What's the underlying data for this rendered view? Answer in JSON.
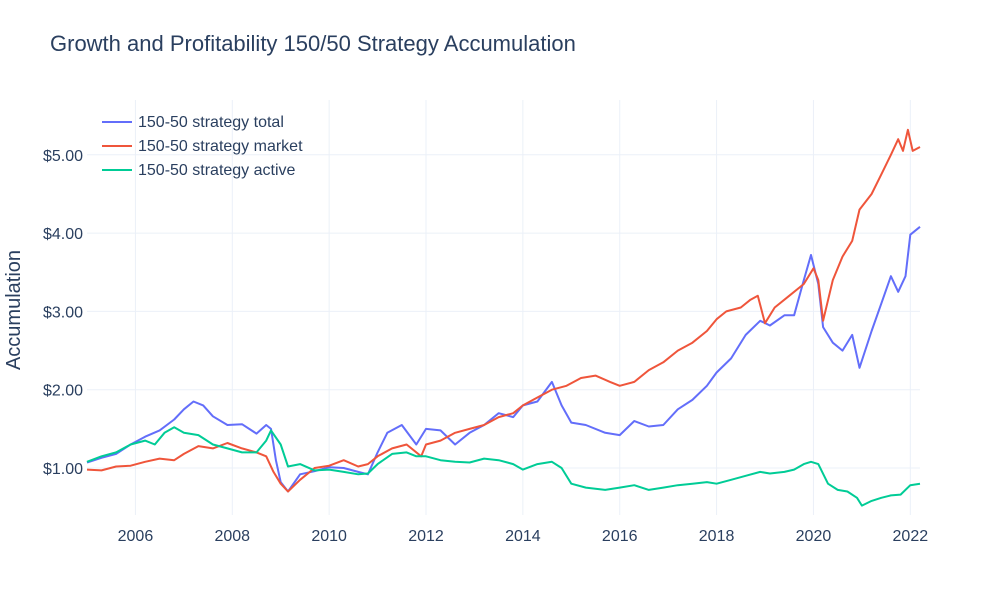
{
  "chart_data": {
    "type": "line",
    "title": "Growth and Profitability 150/50 Strategy Accumulation",
    "xlabel": "",
    "ylabel": "Accumulation",
    "xlim": [
      2005.0,
      2022.2
    ],
    "ylim": [
      0.4,
      5.7
    ],
    "xticks": [
      2006,
      2008,
      2010,
      2012,
      2014,
      2016,
      2018,
      2020,
      2022
    ],
    "xtick_labels": [
      "2006",
      "2008",
      "2010",
      "2012",
      "2014",
      "2016",
      "2018",
      "2020",
      "2022"
    ],
    "yticks": [
      1,
      2,
      3,
      4,
      5
    ],
    "ytick_labels": [
      "$1.00",
      "$2.00",
      "$3.00",
      "$4.00",
      "$5.00"
    ],
    "grid": true,
    "legend_position": "top-left",
    "series": [
      {
        "name": "150-50 strategy total",
        "color": "#636efa",
        "points": [
          [
            2005.0,
            1.07
          ],
          [
            2005.3,
            1.13
          ],
          [
            2005.6,
            1.18
          ],
          [
            2005.9,
            1.3
          ],
          [
            2006.2,
            1.4
          ],
          [
            2006.5,
            1.48
          ],
          [
            2006.8,
            1.62
          ],
          [
            2007.0,
            1.75
          ],
          [
            2007.2,
            1.85
          ],
          [
            2007.4,
            1.8
          ],
          [
            2007.6,
            1.66
          ],
          [
            2007.9,
            1.55
          ],
          [
            2008.2,
            1.56
          ],
          [
            2008.5,
            1.44
          ],
          [
            2008.7,
            1.55
          ],
          [
            2008.8,
            1.5
          ],
          [
            2008.9,
            1.1
          ],
          [
            2009.0,
            0.82
          ],
          [
            2009.15,
            0.7
          ],
          [
            2009.4,
            0.92
          ],
          [
            2009.7,
            0.96
          ],
          [
            2010.0,
            1.01
          ],
          [
            2010.3,
            1.0
          ],
          [
            2010.6,
            0.95
          ],
          [
            2010.8,
            0.92
          ],
          [
            2011.0,
            1.2
          ],
          [
            2011.2,
            1.45
          ],
          [
            2011.5,
            1.55
          ],
          [
            2011.8,
            1.3
          ],
          [
            2012.0,
            1.5
          ],
          [
            2012.3,
            1.48
          ],
          [
            2012.6,
            1.3
          ],
          [
            2012.9,
            1.45
          ],
          [
            2013.2,
            1.55
          ],
          [
            2013.5,
            1.7
          ],
          [
            2013.8,
            1.65
          ],
          [
            2014.0,
            1.8
          ],
          [
            2014.3,
            1.85
          ],
          [
            2014.6,
            2.1
          ],
          [
            2014.8,
            1.8
          ],
          [
            2015.0,
            1.58
          ],
          [
            2015.3,
            1.55
          ],
          [
            2015.7,
            1.45
          ],
          [
            2016.0,
            1.42
          ],
          [
            2016.3,
            1.6
          ],
          [
            2016.6,
            1.53
          ],
          [
            2016.9,
            1.55
          ],
          [
            2017.2,
            1.75
          ],
          [
            2017.5,
            1.87
          ],
          [
            2017.8,
            2.05
          ],
          [
            2018.0,
            2.22
          ],
          [
            2018.3,
            2.4
          ],
          [
            2018.6,
            2.7
          ],
          [
            2018.9,
            2.88
          ],
          [
            2019.1,
            2.82
          ],
          [
            2019.4,
            2.95
          ],
          [
            2019.6,
            2.95
          ],
          [
            2019.8,
            3.4
          ],
          [
            2019.95,
            3.72
          ],
          [
            2020.1,
            3.35
          ],
          [
            2020.2,
            2.8
          ],
          [
            2020.4,
            2.6
          ],
          [
            2020.6,
            2.5
          ],
          [
            2020.8,
            2.7
          ],
          [
            2020.95,
            2.28
          ],
          [
            2021.2,
            2.75
          ],
          [
            2021.4,
            3.1
          ],
          [
            2021.6,
            3.45
          ],
          [
            2021.75,
            3.25
          ],
          [
            2021.9,
            3.45
          ],
          [
            2022.0,
            3.98
          ],
          [
            2022.2,
            4.08
          ]
        ]
      },
      {
        "name": "150-50 strategy market",
        "color": "#ef553b",
        "points": [
          [
            2005.0,
            0.98
          ],
          [
            2005.3,
            0.97
          ],
          [
            2005.6,
            1.02
          ],
          [
            2005.9,
            1.03
          ],
          [
            2006.2,
            1.08
          ],
          [
            2006.5,
            1.12
          ],
          [
            2006.8,
            1.1
          ],
          [
            2007.0,
            1.18
          ],
          [
            2007.3,
            1.28
          ],
          [
            2007.6,
            1.25
          ],
          [
            2007.9,
            1.32
          ],
          [
            2008.2,
            1.25
          ],
          [
            2008.5,
            1.2
          ],
          [
            2008.7,
            1.15
          ],
          [
            2008.85,
            0.95
          ],
          [
            2009.0,
            0.8
          ],
          [
            2009.15,
            0.7
          ],
          [
            2009.4,
            0.85
          ],
          [
            2009.7,
            1.0
          ],
          [
            2010.0,
            1.03
          ],
          [
            2010.3,
            1.1
          ],
          [
            2010.6,
            1.02
          ],
          [
            2010.8,
            1.05
          ],
          [
            2011.0,
            1.15
          ],
          [
            2011.3,
            1.25
          ],
          [
            2011.6,
            1.3
          ],
          [
            2011.9,
            1.15
          ],
          [
            2012.0,
            1.3
          ],
          [
            2012.3,
            1.35
          ],
          [
            2012.6,
            1.45
          ],
          [
            2012.9,
            1.5
          ],
          [
            2013.2,
            1.55
          ],
          [
            2013.5,
            1.65
          ],
          [
            2013.8,
            1.7
          ],
          [
            2014.0,
            1.8
          ],
          [
            2014.3,
            1.9
          ],
          [
            2014.6,
            2.0
          ],
          [
            2014.9,
            2.05
          ],
          [
            2015.2,
            2.15
          ],
          [
            2015.5,
            2.18
          ],
          [
            2015.8,
            2.1
          ],
          [
            2016.0,
            2.05
          ],
          [
            2016.3,
            2.1
          ],
          [
            2016.6,
            2.25
          ],
          [
            2016.9,
            2.35
          ],
          [
            2017.2,
            2.5
          ],
          [
            2017.5,
            2.6
          ],
          [
            2017.8,
            2.75
          ],
          [
            2018.0,
            2.9
          ],
          [
            2018.2,
            3.0
          ],
          [
            2018.5,
            3.05
          ],
          [
            2018.7,
            3.15
          ],
          [
            2018.85,
            3.2
          ],
          [
            2019.0,
            2.85
          ],
          [
            2019.2,
            3.05
          ],
          [
            2019.5,
            3.2
          ],
          [
            2019.8,
            3.35
          ],
          [
            2020.0,
            3.55
          ],
          [
            2020.1,
            3.4
          ],
          [
            2020.2,
            2.88
          ],
          [
            2020.4,
            3.4
          ],
          [
            2020.6,
            3.7
          ],
          [
            2020.8,
            3.9
          ],
          [
            2020.95,
            4.3
          ],
          [
            2021.2,
            4.5
          ],
          [
            2021.4,
            4.75
          ],
          [
            2021.6,
            5.0
          ],
          [
            2021.75,
            5.2
          ],
          [
            2021.85,
            5.05
          ],
          [
            2021.95,
            5.32
          ],
          [
            2022.05,
            5.05
          ],
          [
            2022.2,
            5.1
          ]
        ]
      },
      {
        "name": "150-50 strategy active",
        "color": "#00cc96",
        "points": [
          [
            2005.0,
            1.08
          ],
          [
            2005.3,
            1.15
          ],
          [
            2005.6,
            1.2
          ],
          [
            2005.9,
            1.3
          ],
          [
            2006.2,
            1.35
          ],
          [
            2006.4,
            1.3
          ],
          [
            2006.6,
            1.45
          ],
          [
            2006.8,
            1.52
          ],
          [
            2007.0,
            1.45
          ],
          [
            2007.3,
            1.42
          ],
          [
            2007.6,
            1.3
          ],
          [
            2007.9,
            1.25
          ],
          [
            2008.2,
            1.2
          ],
          [
            2008.5,
            1.2
          ],
          [
            2008.7,
            1.35
          ],
          [
            2008.8,
            1.48
          ],
          [
            2009.0,
            1.3
          ],
          [
            2009.15,
            1.02
          ],
          [
            2009.4,
            1.05
          ],
          [
            2009.7,
            0.97
          ],
          [
            2010.0,
            0.98
          ],
          [
            2010.3,
            0.95
          ],
          [
            2010.6,
            0.92
          ],
          [
            2010.8,
            0.93
          ],
          [
            2011.0,
            1.05
          ],
          [
            2011.3,
            1.18
          ],
          [
            2011.6,
            1.2
          ],
          [
            2011.8,
            1.15
          ],
          [
            2012.0,
            1.15
          ],
          [
            2012.3,
            1.1
          ],
          [
            2012.6,
            1.08
          ],
          [
            2012.9,
            1.07
          ],
          [
            2013.2,
            1.12
          ],
          [
            2013.5,
            1.1
          ],
          [
            2013.8,
            1.05
          ],
          [
            2014.0,
            0.98
          ],
          [
            2014.3,
            1.05
          ],
          [
            2014.6,
            1.08
          ],
          [
            2014.8,
            1.0
          ],
          [
            2015.0,
            0.8
          ],
          [
            2015.3,
            0.75
          ],
          [
            2015.7,
            0.72
          ],
          [
            2016.0,
            0.75
          ],
          [
            2016.3,
            0.78
          ],
          [
            2016.6,
            0.72
          ],
          [
            2016.9,
            0.75
          ],
          [
            2017.2,
            0.78
          ],
          [
            2017.5,
            0.8
          ],
          [
            2017.8,
            0.82
          ],
          [
            2018.0,
            0.8
          ],
          [
            2018.3,
            0.85
          ],
          [
            2018.6,
            0.9
          ],
          [
            2018.9,
            0.95
          ],
          [
            2019.1,
            0.93
          ],
          [
            2019.4,
            0.95
          ],
          [
            2019.6,
            0.98
          ],
          [
            2019.8,
            1.05
          ],
          [
            2019.95,
            1.08
          ],
          [
            2020.1,
            1.05
          ],
          [
            2020.3,
            0.8
          ],
          [
            2020.5,
            0.72
          ],
          [
            2020.7,
            0.7
          ],
          [
            2020.9,
            0.62
          ],
          [
            2021.0,
            0.52
          ],
          [
            2021.2,
            0.58
          ],
          [
            2021.4,
            0.62
          ],
          [
            2021.6,
            0.65
          ],
          [
            2021.8,
            0.66
          ],
          [
            2022.0,
            0.78
          ],
          [
            2022.2,
            0.8
          ]
        ]
      }
    ]
  }
}
